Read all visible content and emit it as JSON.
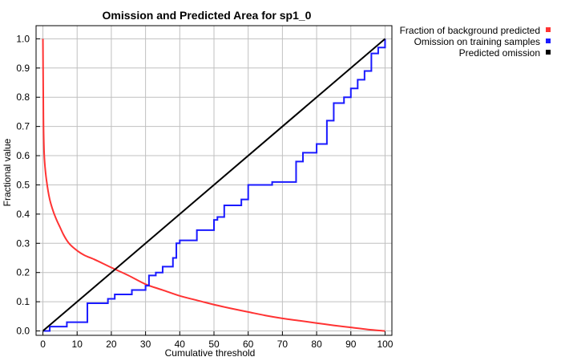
{
  "chart_data": {
    "type": "line",
    "title": "Omission and Predicted Area for sp1_0",
    "xlabel": "Cumulative threshold",
    "ylabel": "Fractional value",
    "xlim": [
      -2,
      102
    ],
    "ylim": [
      -0.015,
      1.045
    ],
    "x_ticks": [
      "0",
      "10",
      "20",
      "30",
      "40",
      "50",
      "60",
      "70",
      "80",
      "90",
      "100"
    ],
    "y_ticks": [
      "0.0",
      "0.1",
      "0.2",
      "0.3",
      "0.4",
      "0.5",
      "0.6",
      "0.7",
      "0.8",
      "0.9",
      "1.0"
    ],
    "grid": true,
    "legend_position": "outside-top-right",
    "series": [
      {
        "name": "Fraction of background predicted",
        "color": "#ff3333",
        "style": "smooth",
        "x": [
          0,
          0.15,
          0.3,
          0.5,
          0.8,
          1,
          1.5,
          2,
          3,
          4,
          5,
          6,
          7,
          8,
          10,
          12,
          15,
          20,
          25,
          30,
          35,
          40,
          45,
          50,
          55,
          60,
          65,
          70,
          75,
          80,
          85,
          90,
          95,
          100
        ],
        "values": [
          1.0,
          0.73,
          0.63,
          0.58,
          0.54,
          0.52,
          0.48,
          0.45,
          0.41,
          0.38,
          0.355,
          0.33,
          0.31,
          0.295,
          0.275,
          0.26,
          0.245,
          0.217,
          0.19,
          0.16,
          0.14,
          0.12,
          0.105,
          0.09,
          0.077,
          0.065,
          0.053,
          0.043,
          0.035,
          0.027,
          0.019,
          0.012,
          0.005,
          0.0
        ]
      },
      {
        "name": "Omission on training samples",
        "color": "#1a1aff",
        "style": "step",
        "x": [
          0,
          2,
          7,
          13,
          19,
          21,
          26,
          30,
          31,
          33,
          35,
          38,
          39,
          40,
          45,
          50,
          51,
          53,
          58,
          60,
          67,
          74,
          76,
          80,
          83,
          85,
          88,
          90,
          92,
          94,
          96,
          98,
          100
        ],
        "values": [
          0.0,
          0.015,
          0.03,
          0.095,
          0.11,
          0.125,
          0.14,
          0.155,
          0.19,
          0.2,
          0.22,
          0.25,
          0.3,
          0.31,
          0.345,
          0.38,
          0.39,
          0.43,
          0.45,
          0.5,
          0.51,
          0.58,
          0.61,
          0.64,
          0.72,
          0.78,
          0.8,
          0.83,
          0.86,
          0.89,
          0.95,
          0.97,
          1.0
        ]
      },
      {
        "name": "Predicted omission",
        "color": "#000000",
        "style": "line",
        "x": [
          0,
          100
        ],
        "values": [
          0.0,
          1.0
        ]
      }
    ]
  }
}
